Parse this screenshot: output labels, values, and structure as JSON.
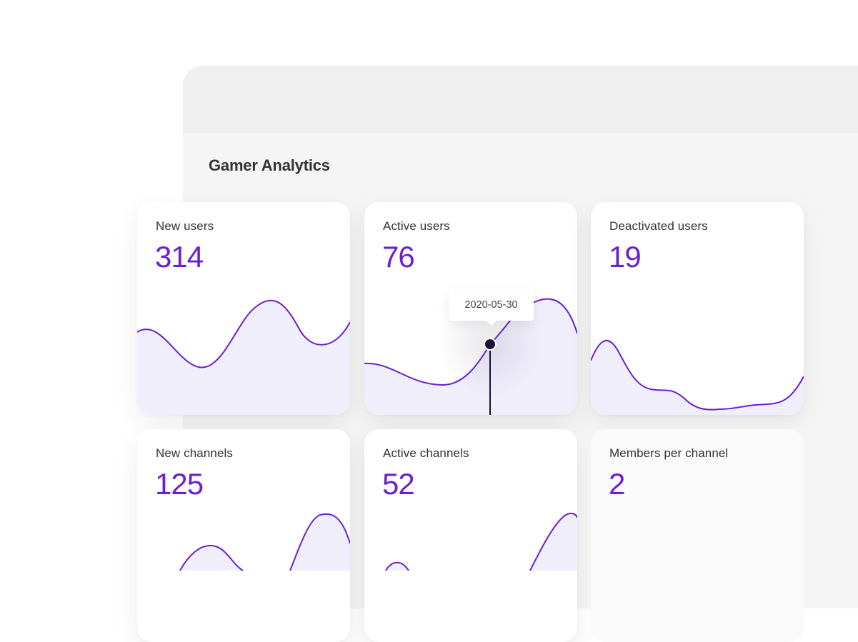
{
  "header": {
    "title": "Gamer Analytics"
  },
  "colors": {
    "accent": "#6a1fd1",
    "fill": "#f1eefc",
    "marker": "#1a0f3a"
  },
  "cards": [
    {
      "label": "New users",
      "value": "314"
    },
    {
      "label": "Active users",
      "value": "76",
      "tooltip": "2020-05-30"
    },
    {
      "label": "Deactivated users",
      "value": "19"
    },
    {
      "label": "New channels",
      "value": "125"
    },
    {
      "label": "Active channels",
      "value": "52"
    },
    {
      "label": "Members per channel",
      "value": "2"
    }
  ]
}
